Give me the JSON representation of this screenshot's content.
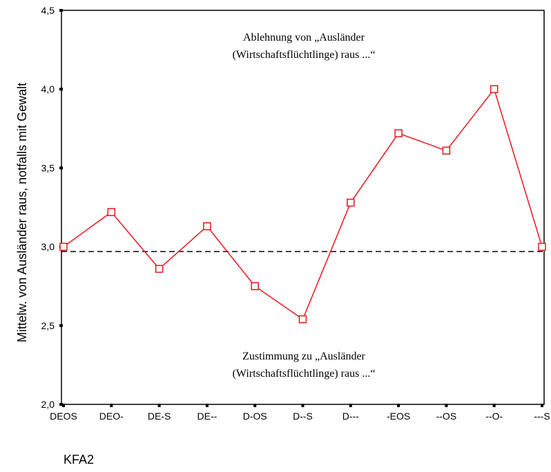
{
  "chart_data": {
    "type": "line",
    "categories": [
      "DEOS",
      "DEO-",
      "DE-S",
      "DE--",
      "D-OS",
      "D--S",
      "D---",
      "-EOS",
      "--OS",
      "--O-",
      "---S"
    ],
    "values": [
      3.0,
      3.22,
      2.86,
      3.13,
      2.75,
      2.54,
      3.28,
      3.72,
      3.61,
      4.0,
      3.0
    ],
    "reference_line": 2.97,
    "ylim": [
      2.0,
      4.5
    ],
    "yticks": [
      "2,0",
      "2,5",
      "3,0",
      "3,5",
      "4,0",
      "4,5"
    ],
    "ytick_values": [
      2.0,
      2.5,
      3.0,
      3.5,
      4.0,
      4.5
    ],
    "ylabel": "Mittelw. von Ausländer raus, notfalls mit Gewalt",
    "xlabel": "KFA2",
    "line_color": "#e8141c",
    "annotations": {
      "top": [
        "Ablehnung von „Ausländer",
        "(Wirtschaftsflüchtlinge) raus ...“"
      ],
      "bottom": [
        "Zustimmung zu „Ausländer",
        "(Wirtschaftsflüchtlinge) raus ...“"
      ]
    },
    "grid": false
  }
}
